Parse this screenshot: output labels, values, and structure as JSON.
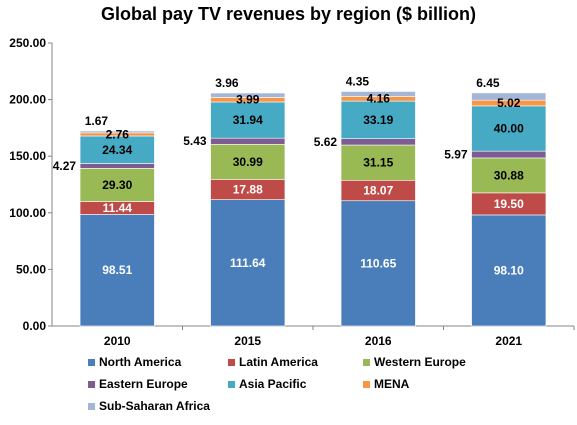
{
  "chart_data": {
    "type": "bar",
    "stacked": true,
    "title": "Global pay TV revenues by region ($ billion)",
    "xlabel": "",
    "ylabel": "",
    "ylim": [
      0,
      250
    ],
    "yticks": [
      "0.00",
      "50.00",
      "100.00",
      "150.00",
      "200.00",
      "250.00"
    ],
    "categories": [
      "2010",
      "2015",
      "2016",
      "2021"
    ],
    "grid": false,
    "legend_position": "bottom",
    "series": [
      {
        "name": "North America",
        "color": "#4A7EBB",
        "values": [
          98.51,
          111.64,
          110.65,
          98.1
        ],
        "labels": [
          "98.51",
          "111.64",
          "110.65",
          "98.10"
        ]
      },
      {
        "name": "Latin America",
        "color": "#BE4B48",
        "values": [
          11.44,
          17.88,
          18.07,
          19.5
        ],
        "labels": [
          "11.44",
          "17.88",
          "18.07",
          "19.50"
        ]
      },
      {
        "name": "Western Europe",
        "color": "#98B954",
        "values": [
          29.3,
          30.99,
          31.15,
          30.88
        ],
        "labels": [
          "29.30",
          "30.99",
          "31.15",
          "30.88"
        ]
      },
      {
        "name": "Eastern Europe",
        "color": "#7D5B93",
        "values": [
          4.27,
          5.43,
          5.62,
          5.97
        ],
        "labels": [
          "4.27",
          "5.43",
          "5.62",
          "5.97"
        ]
      },
      {
        "name": "Asia Pacific",
        "color": "#46AAC5",
        "values": [
          24.34,
          31.94,
          33.19,
          40.0
        ],
        "labels": [
          "24.34",
          "31.94",
          "33.19",
          "40.00"
        ]
      },
      {
        "name": "MENA",
        "color": "#F79646",
        "values": [
          2.76,
          3.99,
          4.16,
          5.02
        ],
        "labels": [
          "2.76",
          "3.99",
          "4.16",
          "5.02"
        ]
      },
      {
        "name": "Sub-Saharan Africa",
        "color": "#A3B6D8",
        "values": [
          1.67,
          3.96,
          4.35,
          6.45
        ],
        "labels": [
          "1.67",
          "3.96",
          "4.35",
          "6.45"
        ]
      }
    ]
  }
}
